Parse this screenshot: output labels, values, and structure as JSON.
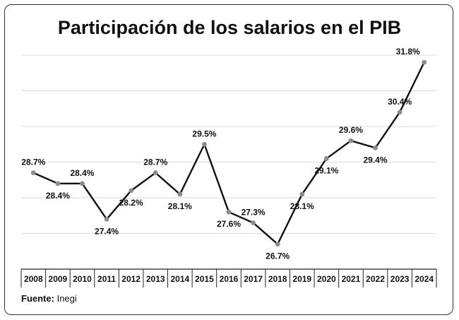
{
  "chart_data": {
    "type": "line",
    "title": "Participación de los salarios en el PIB",
    "xlabel": "",
    "ylabel": "",
    "ylim": [
      26.0,
      32.0
    ],
    "grid": true,
    "x": [
      "2008",
      "2009",
      "2010",
      "2011",
      "2012",
      "2013",
      "2014",
      "2015",
      "2016",
      "2017",
      "2018",
      "2019",
      "2020",
      "2021",
      "2022",
      "2023",
      "2024"
    ],
    "series": [
      {
        "values": [
          28.7,
          28.4,
          28.4,
          27.4,
          28.2,
          28.7,
          28.1,
          29.5,
          27.6,
          27.3,
          26.7,
          28.1,
          29.1,
          29.6,
          29.4,
          30.4,
          31.8
        ],
        "labels": [
          "28.7%",
          "28.4%",
          "28.4%",
          "27.4%",
          "28.2%",
          "28.7%",
          "28.1%",
          "29.5%",
          "27.6%",
          "27.3%",
          "26.7%",
          "28.1%",
          "29.1%",
          "29.6%",
          "29.4%",
          "30.4%",
          "31.8%"
        ],
        "label_pos": [
          "above",
          "below",
          "above",
          "below",
          "below",
          "above",
          "below",
          "above",
          "below",
          "above",
          "below",
          "below",
          "below",
          "above",
          "below",
          "above",
          "above"
        ]
      }
    ],
    "colors": {
      "line": "#111111",
      "marker": "#8c8c8c",
      "grid": "#d9d9d9",
      "axis": "#222222"
    }
  },
  "source": {
    "label": "Fuente:",
    "text": "Inegi"
  }
}
